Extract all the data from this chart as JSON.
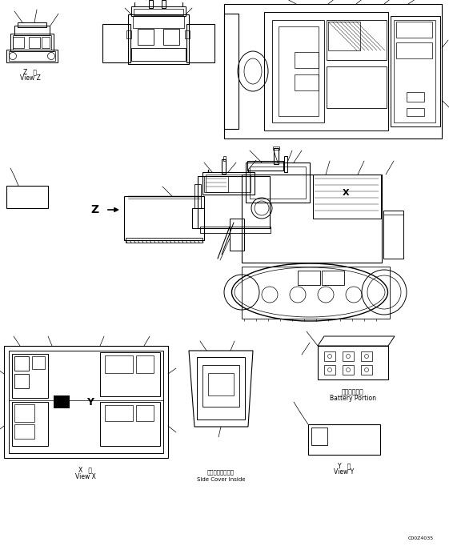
{
  "bg_color": "#ffffff",
  "line_color": "#000000",
  "title_bottom": "C00Z4035",
  "labels": {
    "view_z_jp": "Z   視",
    "view_z_en": "View Z",
    "view_x_jp": "X   視",
    "view_x_en": "View X",
    "side_cover_jp": "サイドカバー内視",
    "side_cover_en": "Side Cover Inside",
    "battery_jp": "バッテリー部",
    "battery_en": "Battery Portion",
    "view_y_jp": "Y   視",
    "view_y_en": "View Y",
    "z_label": "Z"
  },
  "fig_width": 5.61,
  "fig_height": 6.82,
  "dpi": 100
}
